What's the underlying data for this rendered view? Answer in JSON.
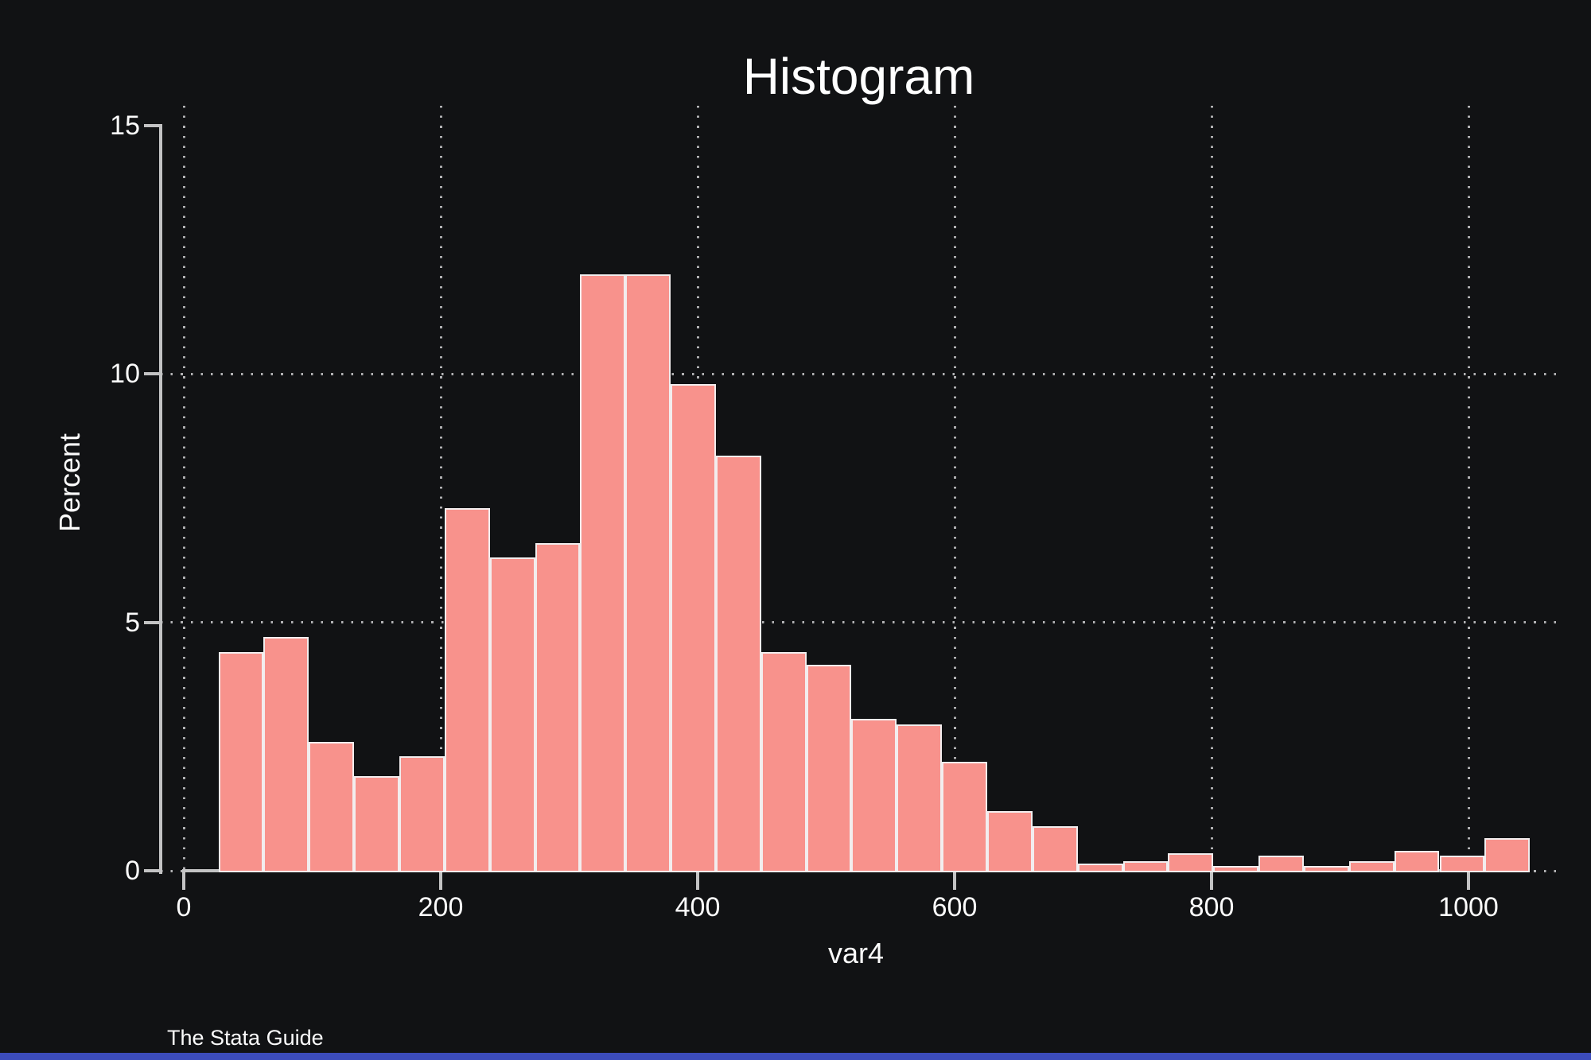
{
  "title": "Histogram",
  "credit": "The Stata Guide",
  "colors": {
    "background": "#111214",
    "bar_fill": "#f8928c",
    "bar_border": "#f2edee",
    "axis": "#c3c3c4",
    "grid_dots": "#cdcdcf",
    "text": "#fbfbfb",
    "bottom_strip": "#3c4cbb"
  },
  "chart_data": {
    "type": "bar",
    "subtype": "histogram",
    "title": "Histogram",
    "xlabel": "var4",
    "ylabel": "Percent",
    "x_ticks": [
      0,
      200,
      400,
      600,
      800,
      1000
    ],
    "y_ticks": [
      0,
      5,
      10,
      15
    ],
    "ylim": [
      0,
      15
    ],
    "xlim_displayed": [
      -18,
      1069
    ],
    "bin_start": 27,
    "bin_width": 35.2,
    "bar_unit": "percent",
    "values": [
      4.4,
      4.7,
      2.6,
      1.9,
      2.3,
      7.3,
      6.3,
      6.6,
      12.0,
      12.0,
      9.8,
      8.35,
      4.4,
      4.15,
      3.05,
      2.95,
      2.2,
      1.2,
      0.9,
      0.15,
      0.2,
      0.35,
      0.1,
      0.3,
      0.1,
      0.2,
      0.4,
      0.3,
      0.65
    ],
    "grid": {
      "style": "dotted",
      "horizontal_at": [
        0,
        5,
        10
      ],
      "vertical_at": [
        0,
        200,
        400,
        600,
        800,
        1000
      ]
    },
    "legend": "none"
  }
}
